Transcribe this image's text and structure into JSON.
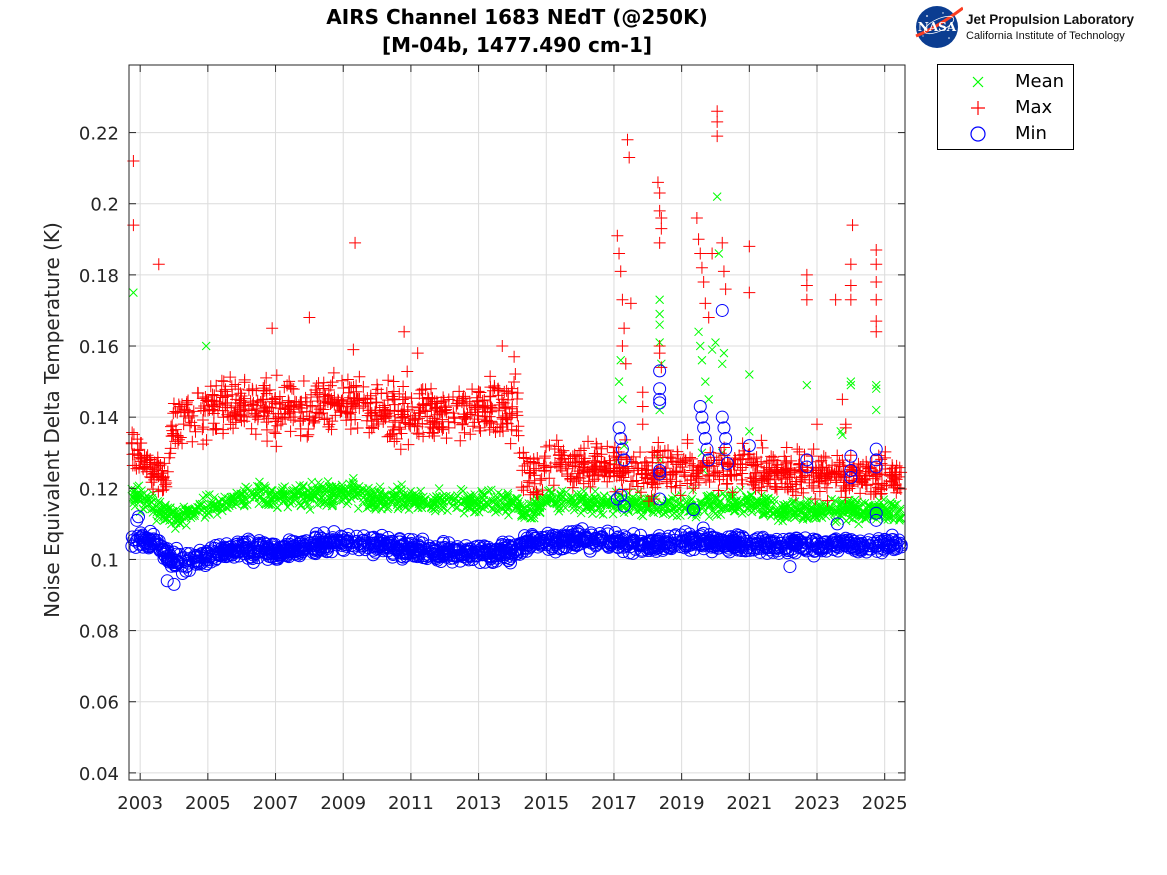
{
  "chart_data": {
    "type": "scatter",
    "title": [
      "AIRS Channel 1683 NEdT (@250K)",
      "[M-04b, 1477.490 cm-1]"
    ],
    "xlabel": "",
    "ylabel": "Noise Equivalent Delta Temperature (K)",
    "xlim": [
      2002.67,
      2025.6
    ],
    "ylim": [
      0.038,
      0.239
    ],
    "grid": true,
    "legend_position": "outside-top-right",
    "x_ticks": [
      2003,
      2005,
      2007,
      2009,
      2011,
      2013,
      2015,
      2017,
      2019,
      2021,
      2023,
      2025
    ],
    "x_tick_labels": [
      "2003",
      "2005",
      "2007",
      "2009",
      "2011",
      "2013",
      "2015",
      "2017",
      "2019",
      "2021",
      "2023",
      "2025"
    ],
    "y_ticks": [
      0.04,
      0.06,
      0.08,
      0.1,
      0.12,
      0.14,
      0.16,
      0.18,
      0.2,
      0.22
    ],
    "y_tick_labels": [
      "0.04",
      "0.06",
      "0.08",
      "0.1",
      "0.12",
      "0.14",
      "0.16",
      "0.18",
      "0.2",
      "0.22"
    ],
    "series": [
      {
        "name": "Mean",
        "marker": "x",
        "color": "#00ff00",
        "trend": [
          [
            2002.75,
            0.119
          ],
          [
            2003.0,
            0.117
          ],
          [
            2003.5,
            0.114
          ],
          [
            2004.0,
            0.112
          ],
          [
            2004.5,
            0.113
          ],
          [
            2005.0,
            0.115
          ],
          [
            2006.0,
            0.117
          ],
          [
            2006.5,
            0.118
          ],
          [
            2007.0,
            0.117
          ],
          [
            2008.0,
            0.118
          ],
          [
            2009.0,
            0.119
          ],
          [
            2009.5,
            0.118
          ],
          [
            2010.0,
            0.117
          ],
          [
            2011.0,
            0.117
          ],
          [
            2012.0,
            0.116
          ],
          [
            2013.0,
            0.116
          ],
          [
            2014.1,
            0.116
          ],
          [
            2014.3,
            0.113
          ],
          [
            2014.6,
            0.114
          ],
          [
            2015.0,
            0.117
          ],
          [
            2016.0,
            0.116
          ],
          [
            2017.0,
            0.116
          ],
          [
            2018.0,
            0.115
          ],
          [
            2019.0,
            0.115
          ],
          [
            2020.0,
            0.116
          ],
          [
            2021.0,
            0.116
          ],
          [
            2022.0,
            0.114
          ],
          [
            2023.0,
            0.114
          ],
          [
            2024.0,
            0.114
          ],
          [
            2025.5,
            0.113
          ]
        ],
        "spread": 0.003,
        "outliers": [
          [
            2002.8,
            0.175
          ],
          [
            2004.95,
            0.16
          ],
          [
            2017.2,
            0.156
          ],
          [
            2017.15,
            0.15
          ],
          [
            2017.25,
            0.145
          ],
          [
            2017.3,
            0.132
          ],
          [
            2018.35,
            0.173
          ],
          [
            2018.35,
            0.169
          ],
          [
            2018.35,
            0.166
          ],
          [
            2018.35,
            0.161
          ],
          [
            2018.4,
            0.155
          ],
          [
            2018.35,
            0.142
          ],
          [
            2018.35,
            0.128
          ],
          [
            2018.35,
            0.124
          ],
          [
            2019.5,
            0.164
          ],
          [
            2019.55,
            0.16
          ],
          [
            2019.6,
            0.156
          ],
          [
            2019.7,
            0.15
          ],
          [
            2019.8,
            0.145
          ],
          [
            2019.9,
            0.159
          ],
          [
            2020.0,
            0.161
          ],
          [
            2020.05,
            0.202
          ],
          [
            2020.1,
            0.186
          ],
          [
            2020.25,
            0.158
          ],
          [
            2020.2,
            0.155
          ],
          [
            2021.0,
            0.152
          ],
          [
            2021.0,
            0.136
          ],
          [
            2022.7,
            0.149
          ],
          [
            2023.7,
            0.136
          ],
          [
            2023.75,
            0.135
          ],
          [
            2024.0,
            0.15
          ],
          [
            2024.0,
            0.149
          ],
          [
            2024.75,
            0.149
          ],
          [
            2024.75,
            0.148
          ],
          [
            2024.75,
            0.142
          ],
          [
            2017.1,
            0.128
          ],
          [
            2019.6,
            0.13
          ],
          [
            2019.65,
            0.125
          ],
          [
            2020.2,
            0.13
          ]
        ]
      },
      {
        "name": "Max",
        "marker": "+",
        "color": "#ff0000",
        "trend": [
          [
            2002.75,
            0.133
          ],
          [
            2003.0,
            0.13
          ],
          [
            2003.2,
            0.125
          ],
          [
            2003.8,
            0.124
          ],
          [
            2003.95,
            0.136
          ],
          [
            2004.5,
            0.14
          ],
          [
            2005.0,
            0.142
          ],
          [
            2006.0,
            0.143
          ],
          [
            2007.0,
            0.142
          ],
          [
            2008.0,
            0.143
          ],
          [
            2009.0,
            0.144
          ],
          [
            2010.0,
            0.142
          ],
          [
            2011.0,
            0.141
          ],
          [
            2012.0,
            0.142
          ],
          [
            2013.0,
            0.142
          ],
          [
            2014.15,
            0.141
          ],
          [
            2014.25,
            0.124
          ],
          [
            2014.8,
            0.124
          ],
          [
            2015.0,
            0.127
          ],
          [
            2016.0,
            0.127
          ],
          [
            2017.0,
            0.126
          ],
          [
            2018.0,
            0.124
          ],
          [
            2019.0,
            0.125
          ],
          [
            2020.0,
            0.125
          ],
          [
            2021.0,
            0.126
          ],
          [
            2022.0,
            0.124
          ],
          [
            2023.0,
            0.124
          ],
          [
            2024.0,
            0.124
          ],
          [
            2025.5,
            0.123
          ]
        ],
        "spread": 0.006,
        "outliers": [
          [
            2002.8,
            0.212
          ],
          [
            2002.8,
            0.194
          ],
          [
            2003.55,
            0.183
          ],
          [
            2006.9,
            0.165
          ],
          [
            2008.0,
            0.168
          ],
          [
            2009.35,
            0.189
          ],
          [
            2009.3,
            0.159
          ],
          [
            2010.8,
            0.164
          ],
          [
            2011.2,
            0.158
          ],
          [
            2013.7,
            0.16
          ],
          [
            2014.05,
            0.157
          ],
          [
            2017.1,
            0.191
          ],
          [
            2017.15,
            0.186
          ],
          [
            2017.2,
            0.181
          ],
          [
            2017.25,
            0.173
          ],
          [
            2017.3,
            0.165
          ],
          [
            2017.25,
            0.16
          ],
          [
            2017.35,
            0.155
          ],
          [
            2017.4,
            0.218
          ],
          [
            2017.45,
            0.213
          ],
          [
            2017.5,
            0.172
          ],
          [
            2018.3,
            0.206
          ],
          [
            2018.35,
            0.203
          ],
          [
            2018.35,
            0.198
          ],
          [
            2018.4,
            0.196
          ],
          [
            2018.4,
            0.193
          ],
          [
            2018.35,
            0.189
          ],
          [
            2018.35,
            0.16
          ],
          [
            2018.35,
            0.158
          ],
          [
            2018.4,
            0.154
          ],
          [
            2017.85,
            0.147
          ],
          [
            2017.85,
            0.143
          ],
          [
            2017.85,
            0.138
          ],
          [
            2019.45,
            0.196
          ],
          [
            2019.5,
            0.19
          ],
          [
            2019.55,
            0.186
          ],
          [
            2019.6,
            0.182
          ],
          [
            2019.65,
            0.178
          ],
          [
            2019.7,
            0.172
          ],
          [
            2019.8,
            0.168
          ],
          [
            2019.9,
            0.186
          ],
          [
            2020.05,
            0.226
          ],
          [
            2020.05,
            0.223
          ],
          [
            2020.05,
            0.219
          ],
          [
            2020.2,
            0.189
          ],
          [
            2020.25,
            0.181
          ],
          [
            2020.3,
            0.176
          ],
          [
            2021.0,
            0.188
          ],
          [
            2021.0,
            0.175
          ],
          [
            2022.7,
            0.18
          ],
          [
            2022.7,
            0.177
          ],
          [
            2022.7,
            0.173
          ],
          [
            2023.55,
            0.173
          ],
          [
            2023.75,
            0.145
          ],
          [
            2023.85,
            0.138
          ],
          [
            2024.05,
            0.194
          ],
          [
            2024.0,
            0.183
          ],
          [
            2024.0,
            0.177
          ],
          [
            2024.0,
            0.173
          ],
          [
            2024.75,
            0.187
          ],
          [
            2024.75,
            0.183
          ],
          [
            2024.75,
            0.178
          ],
          [
            2024.75,
            0.173
          ],
          [
            2024.75,
            0.167
          ],
          [
            2024.75,
            0.164
          ],
          [
            2022.9,
            0.131
          ],
          [
            2023.0,
            0.138
          ],
          [
            2023.85,
            0.137
          ]
        ]
      },
      {
        "name": "Min",
        "marker": "o",
        "color": "#0000ff",
        "trend": [
          [
            2002.75,
            0.105
          ],
          [
            2003.0,
            0.106
          ],
          [
            2003.5,
            0.104
          ],
          [
            2003.9,
            0.1
          ],
          [
            2004.2,
            0.099
          ],
          [
            2004.5,
            0.1
          ],
          [
            2005.0,
            0.101
          ],
          [
            2006.0,
            0.103
          ],
          [
            2007.0,
            0.102
          ],
          [
            2008.0,
            0.104
          ],
          [
            2009.0,
            0.105
          ],
          [
            2010.0,
            0.104
          ],
          [
            2011.0,
            0.103
          ],
          [
            2012.0,
            0.102
          ],
          [
            2013.0,
            0.102
          ],
          [
            2014.0,
            0.102
          ],
          [
            2014.5,
            0.105
          ],
          [
            2015.0,
            0.105
          ],
          [
            2016.0,
            0.106
          ],
          [
            2017.0,
            0.105
          ],
          [
            2018.0,
            0.104
          ],
          [
            2019.0,
            0.105
          ],
          [
            2020.0,
            0.105
          ],
          [
            2021.0,
            0.104
          ],
          [
            2022.0,
            0.104
          ],
          [
            2023.0,
            0.104
          ],
          [
            2024.0,
            0.104
          ],
          [
            2025.5,
            0.104
          ]
        ],
        "spread": 0.0025,
        "outliers": [
          [
            2002.9,
            0.111
          ],
          [
            2002.95,
            0.112
          ],
          [
            2003.8,
            0.094
          ],
          [
            2004.0,
            0.093
          ],
          [
            2017.15,
            0.137
          ],
          [
            2017.2,
            0.134
          ],
          [
            2017.25,
            0.131
          ],
          [
            2017.3,
            0.128
          ],
          [
            2017.2,
            0.118
          ],
          [
            2017.3,
            0.115
          ],
          [
            2018.35,
            0.153
          ],
          [
            2018.35,
            0.148
          ],
          [
            2018.35,
            0.145
          ],
          [
            2018.35,
            0.144
          ],
          [
            2018.35,
            0.125
          ],
          [
            2018.35,
            0.124
          ],
          [
            2018.35,
            0.117
          ],
          [
            2019.55,
            0.143
          ],
          [
            2019.6,
            0.14
          ],
          [
            2019.65,
            0.137
          ],
          [
            2019.7,
            0.134
          ],
          [
            2019.75,
            0.131
          ],
          [
            2019.8,
            0.128
          ],
          [
            2020.2,
            0.17
          ],
          [
            2020.2,
            0.14
          ],
          [
            2020.25,
            0.137
          ],
          [
            2020.3,
            0.134
          ],
          [
            2020.3,
            0.131
          ],
          [
            2020.35,
            0.127
          ],
          [
            2021.0,
            0.132
          ],
          [
            2022.7,
            0.128
          ],
          [
            2022.7,
            0.126
          ],
          [
            2024.0,
            0.129
          ],
          [
            2024.0,
            0.125
          ],
          [
            2024.0,
            0.123
          ],
          [
            2024.75,
            0.131
          ],
          [
            2024.75,
            0.128
          ],
          [
            2024.75,
            0.126
          ],
          [
            2024.75,
            0.113
          ],
          [
            2024.75,
            0.111
          ],
          [
            2023.6,
            0.11
          ],
          [
            2022.2,
            0.098
          ],
          [
            2019.35,
            0.114
          ],
          [
            2017.1,
            0.117
          ]
        ]
      }
    ]
  },
  "logo": {
    "icon": "nasa-meatball-icon",
    "badge_text": "NASA",
    "org_name": "Jet Propulsion Laboratory",
    "org_sub": "California Institute of Technology"
  },
  "legend": {
    "items": [
      {
        "label": "Mean",
        "marker": "x",
        "color": "#00ff00"
      },
      {
        "label": "Max",
        "marker": "+",
        "color": "#ff0000"
      },
      {
        "label": "Min",
        "marker": "o",
        "color": "#0000ff"
      }
    ]
  }
}
